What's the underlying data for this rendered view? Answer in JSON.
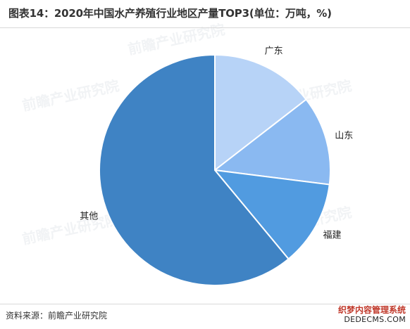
{
  "header": {
    "title": "图表14：2020年中国水产养殖行业地区产量TOP3(单位：万吨，%)"
  },
  "footer": {
    "source": "资料来源：前瞻产业研究院",
    "corner_mark_top": "织梦内容管理系统",
    "corner_mark_bottom": "DEDECMS.COM"
  },
  "watermark": {
    "text": "前瞻产业研究院"
  },
  "chart_data": {
    "type": "pie",
    "title": "图表14：2020年中国水产养殖行业地区产量TOP3(单位：万吨，%)",
    "start_angle_deg": 0,
    "direction": "clockwise",
    "slices": [
      {
        "label": "广东",
        "value": 14.5,
        "color": "#b7d3f7"
      },
      {
        "label": "山东",
        "value": 12.5,
        "color": "#8ab9f1"
      },
      {
        "label": "福建",
        "value": 12.0,
        "color": "#519be0"
      },
      {
        "label": "其他",
        "value": 61.0,
        "color": "#3f83c4"
      }
    ]
  }
}
